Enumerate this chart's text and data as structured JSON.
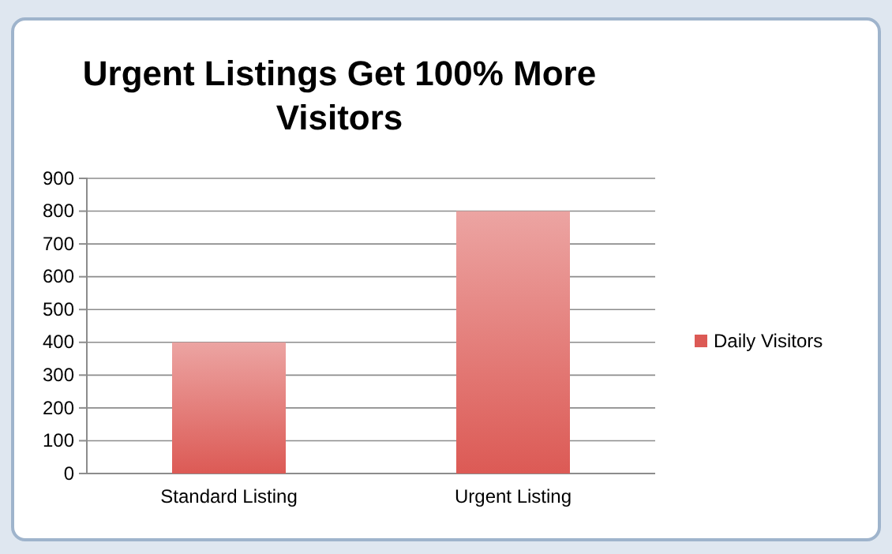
{
  "chart_data": {
    "type": "bar",
    "title": "Urgent Listings Get 100% More Visitors",
    "categories": [
      "Standard Listing",
      "Urgent Listing"
    ],
    "series": [
      {
        "name": "Daily Visitors",
        "color": "#dc5a55",
        "values": [
          400,
          800
        ]
      }
    ],
    "ylim": [
      0,
      900
    ],
    "yticks": [
      0,
      100,
      200,
      300,
      400,
      500,
      600,
      700,
      800,
      900
    ],
    "grid": "y",
    "legend": "right"
  }
}
